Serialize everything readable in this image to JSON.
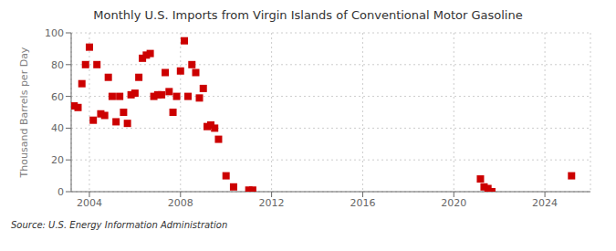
{
  "chart_data": {
    "type": "scatter",
    "title": "Monthly U.S. Imports from Virgin Islands of Conventional Motor Gasoline",
    "ylabel": "Thousand Barrels per Day",
    "annotations": [
      "Source: U.S. Energy Information Administration"
    ],
    "x": [
      2003.33,
      2003.5,
      2003.67,
      2003.83,
      2004.0,
      2004.17,
      2004.33,
      2004.5,
      2004.67,
      2004.83,
      2005.0,
      2005.17,
      2005.33,
      2005.5,
      2005.67,
      2005.83,
      2006.0,
      2006.17,
      2006.33,
      2006.5,
      2006.67,
      2006.83,
      2007.0,
      2007.17,
      2007.33,
      2007.5,
      2007.67,
      2007.83,
      2008.0,
      2008.17,
      2008.33,
      2008.5,
      2008.67,
      2008.83,
      2009.0,
      2009.17,
      2009.33,
      2009.5,
      2009.67,
      2010.0,
      2010.33,
      2011.0,
      2011.17,
      2021.17,
      2021.33,
      2021.5,
      2021.67,
      2025.17
    ],
    "values": [
      54,
      53,
      68,
      80,
      91,
      45,
      80,
      49,
      48,
      72,
      60,
      44,
      60,
      50,
      43,
      61,
      62,
      72,
      84,
      86,
      87,
      60,
      61,
      61,
      75,
      63,
      50,
      60,
      76,
      95,
      60,
      80,
      75,
      59,
      65,
      41,
      42,
      40,
      33,
      10,
      3,
      1,
      1,
      8,
      3,
      2,
      0,
      10
    ],
    "color": "#cc0000",
    "marker": "square",
    "xlim": [
      2003.2,
      2026.0
    ],
    "ylim": [
      0,
      100
    ],
    "xticks": [
      2004,
      2008,
      2012,
      2016,
      2020,
      2024
    ],
    "yticks": [
      0,
      20,
      40,
      60,
      80,
      100
    ],
    "grid": true
  }
}
